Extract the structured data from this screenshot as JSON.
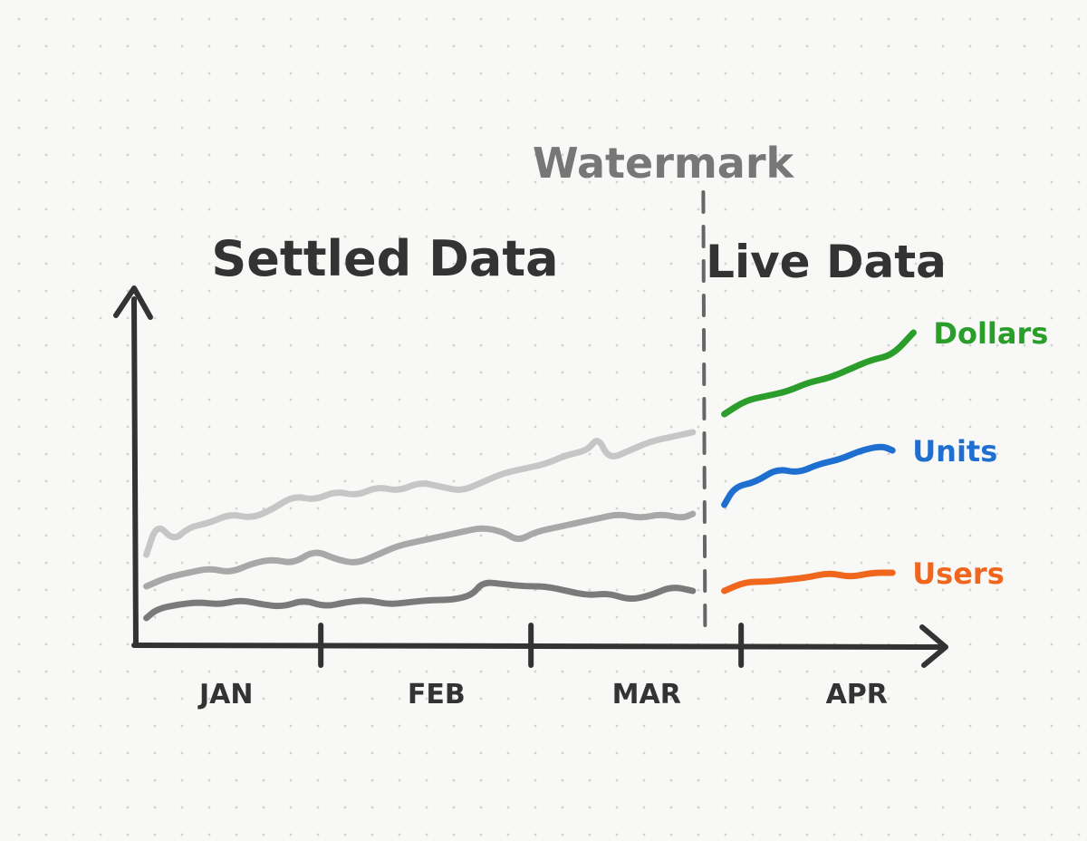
{
  "chart_data": {
    "type": "line",
    "annotations": {
      "watermark": "Watermark",
      "settled": "Settled Data",
      "live": "Live Data"
    },
    "x_ticks": [
      "JAN",
      "FEB",
      "MAR",
      "APR"
    ],
    "x_range": [
      0,
      4
    ],
    "y_range": [
      0,
      10
    ],
    "watermark_x": 2.7,
    "settled_series": [
      {
        "color": "#c6c6c6",
        "points": [
          [
            0.05,
            2.0
          ],
          [
            0.1,
            2.7
          ],
          [
            0.18,
            2.3
          ],
          [
            0.25,
            2.6
          ],
          [
            0.35,
            2.7
          ],
          [
            0.45,
            2.9
          ],
          [
            0.55,
            2.8
          ],
          [
            0.65,
            3.0
          ],
          [
            0.75,
            3.3
          ],
          [
            0.85,
            3.2
          ],
          [
            0.95,
            3.4
          ],
          [
            1.05,
            3.3
          ],
          [
            1.15,
            3.5
          ],
          [
            1.25,
            3.4
          ],
          [
            1.35,
            3.6
          ],
          [
            1.45,
            3.5
          ],
          [
            1.55,
            3.4
          ],
          [
            1.65,
            3.6
          ],
          [
            1.75,
            3.8
          ],
          [
            1.85,
            3.9
          ],
          [
            1.95,
            4.0
          ],
          [
            2.05,
            4.2
          ],
          [
            2.15,
            4.3
          ],
          [
            2.2,
            4.6
          ],
          [
            2.25,
            4.1
          ],
          [
            2.35,
            4.3
          ],
          [
            2.45,
            4.5
          ],
          [
            2.55,
            4.6
          ],
          [
            2.65,
            4.7
          ]
        ]
      },
      {
        "color": "#a8a8a8",
        "points": [
          [
            0.05,
            1.3
          ],
          [
            0.15,
            1.5
          ],
          [
            0.25,
            1.6
          ],
          [
            0.35,
            1.7
          ],
          [
            0.45,
            1.6
          ],
          [
            0.55,
            1.8
          ],
          [
            0.65,
            1.9
          ],
          [
            0.75,
            1.8
          ],
          [
            0.85,
            2.1
          ],
          [
            0.95,
            1.9
          ],
          [
            1.05,
            1.8
          ],
          [
            1.15,
            2.0
          ],
          [
            1.25,
            2.2
          ],
          [
            1.35,
            2.3
          ],
          [
            1.45,
            2.4
          ],
          [
            1.55,
            2.5
          ],
          [
            1.65,
            2.6
          ],
          [
            1.75,
            2.5
          ],
          [
            1.82,
            2.3
          ],
          [
            1.9,
            2.5
          ],
          [
            2.0,
            2.6
          ],
          [
            2.1,
            2.7
          ],
          [
            2.2,
            2.8
          ],
          [
            2.3,
            2.9
          ],
          [
            2.4,
            2.8
          ],
          [
            2.5,
            2.9
          ],
          [
            2.6,
            2.8
          ],
          [
            2.65,
            2.9
          ]
        ]
      },
      {
        "color": "#7a7a7a",
        "points": [
          [
            0.05,
            0.6
          ],
          [
            0.1,
            0.8
          ],
          [
            0.2,
            0.9
          ],
          [
            0.3,
            0.95
          ],
          [
            0.4,
            0.9
          ],
          [
            0.5,
            1.0
          ],
          [
            0.6,
            0.9
          ],
          [
            0.7,
            0.85
          ],
          [
            0.8,
            1.0
          ],
          [
            0.9,
            0.85
          ],
          [
            1.0,
            0.95
          ],
          [
            1.1,
            1.0
          ],
          [
            1.2,
            0.9
          ],
          [
            1.3,
            0.95
          ],
          [
            1.4,
            1.0
          ],
          [
            1.5,
            1.0
          ],
          [
            1.6,
            1.1
          ],
          [
            1.65,
            1.4
          ],
          [
            1.75,
            1.35
          ],
          [
            1.85,
            1.3
          ],
          [
            1.95,
            1.3
          ],
          [
            2.05,
            1.2
          ],
          [
            2.15,
            1.1
          ],
          [
            2.25,
            1.15
          ],
          [
            2.35,
            1.0
          ],
          [
            2.45,
            1.1
          ],
          [
            2.55,
            1.3
          ],
          [
            2.65,
            1.2
          ]
        ]
      }
    ],
    "live_series": [
      {
        "name": "Dollars",
        "color": "#2a9d2a",
        "points": [
          [
            2.8,
            5.1
          ],
          [
            2.9,
            5.4
          ],
          [
            3.0,
            5.5
          ],
          [
            3.1,
            5.6
          ],
          [
            3.2,
            5.8
          ],
          [
            3.3,
            5.9
          ],
          [
            3.4,
            6.1
          ],
          [
            3.5,
            6.3
          ],
          [
            3.6,
            6.4
          ],
          [
            3.7,
            6.9
          ]
        ]
      },
      {
        "name": "Units",
        "color": "#1e6fd0",
        "points": [
          [
            2.8,
            3.1
          ],
          [
            2.85,
            3.5
          ],
          [
            2.95,
            3.6
          ],
          [
            3.05,
            3.9
          ],
          [
            3.15,
            3.8
          ],
          [
            3.25,
            4.0
          ],
          [
            3.35,
            4.1
          ],
          [
            3.45,
            4.3
          ],
          [
            3.55,
            4.4
          ],
          [
            3.6,
            4.3
          ]
        ]
      },
      {
        "name": "Users",
        "color": "#f0661c",
        "points": [
          [
            2.8,
            1.2
          ],
          [
            2.9,
            1.4
          ],
          [
            3.0,
            1.4
          ],
          [
            3.1,
            1.45
          ],
          [
            3.2,
            1.5
          ],
          [
            3.3,
            1.6
          ],
          [
            3.4,
            1.5
          ],
          [
            3.5,
            1.6
          ],
          [
            3.6,
            1.6
          ]
        ]
      }
    ]
  }
}
